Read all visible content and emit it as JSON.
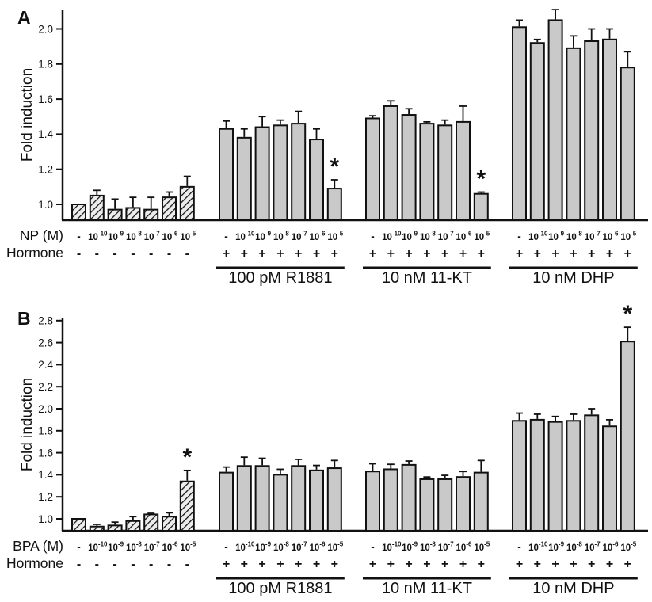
{
  "figure": {
    "title": "Fold induction bar chart figure, panels A and B",
    "colors": {
      "bar_fill": "#c9c9c9",
      "hatch_bg": "#ececec",
      "ink": "#111111",
      "background": "#ffffff"
    }
  },
  "chart_data": [
    {
      "type": "bar",
      "panel_letter": "A",
      "ylabel": "Fold induction",
      "ylim": [
        0.9,
        2.12
      ],
      "yticks": [
        1.0,
        1.2,
        1.4,
        1.6,
        1.8,
        2.0
      ],
      "grid": false,
      "legend": "none",
      "dose_row_label": "NP (M)",
      "hormone_row_label": "Hormone",
      "doses": [
        {
          "text": "-",
          "exp": ""
        },
        {
          "text": "10",
          "exp": "-10"
        },
        {
          "text": "10",
          "exp": "-9"
        },
        {
          "text": "10",
          "exp": "-8"
        },
        {
          "text": "10",
          "exp": "-7"
        },
        {
          "text": "10",
          "exp": "-6"
        },
        {
          "text": "10",
          "exp": "-5"
        }
      ],
      "groups": [
        {
          "label": "",
          "hormone_sign": "-",
          "hatched": true,
          "underline": false,
          "values": [
            1.0,
            1.05,
            0.97,
            0.98,
            0.97,
            1.04,
            1.1
          ],
          "errors": [
            0,
            0.03,
            0.06,
            0.06,
            0.07,
            0.03,
            0.06
          ],
          "significant": []
        },
        {
          "label": "100 pM R1881",
          "hormone_sign": "+",
          "hatched": false,
          "underline": true,
          "values": [
            1.43,
            1.38,
            1.44,
            1.45,
            1.46,
            1.37,
            1.09
          ],
          "errors": [
            0.045,
            0.05,
            0.06,
            0.03,
            0.07,
            0.06,
            0.05
          ],
          "significant": [
            6
          ]
        },
        {
          "label": "10 nM 11-KT",
          "hormone_sign": "+",
          "hatched": false,
          "underline": true,
          "values": [
            1.49,
            1.56,
            1.51,
            1.46,
            1.45,
            1.47,
            1.06
          ],
          "errors": [
            0.015,
            0.03,
            0.035,
            0.01,
            0.03,
            0.09,
            0.01
          ],
          "significant": [
            6
          ]
        },
        {
          "label": "10 nM DHP",
          "hormone_sign": "+",
          "hatched": false,
          "underline": true,
          "values": [
            2.01,
            1.92,
            2.05,
            1.89,
            1.93,
            1.94,
            1.78
          ],
          "errors": [
            0.04,
            0.02,
            0.06,
            0.07,
            0.07,
            0.06,
            0.09
          ],
          "significant": []
        }
      ]
    },
    {
      "type": "bar",
      "panel_letter": "B",
      "ylabel": "Fold induction",
      "ylim": [
        0.89,
        2.85
      ],
      "yticks": [
        1.0,
        1.2,
        1.4,
        1.6,
        1.8,
        2.0,
        2.2,
        2.4,
        2.6,
        2.8
      ],
      "grid": false,
      "legend": "none",
      "dose_row_label": "BPA (M)",
      "hormone_row_label": "Hormone",
      "doses": [
        {
          "text": "-",
          "exp": ""
        },
        {
          "text": "10",
          "exp": "-10"
        },
        {
          "text": "10",
          "exp": "-9"
        },
        {
          "text": "10",
          "exp": "-8"
        },
        {
          "text": "10",
          "exp": "-7"
        },
        {
          "text": "10",
          "exp": "-6"
        },
        {
          "text": "10",
          "exp": "-5"
        }
      ],
      "groups": [
        {
          "label": "",
          "hormone_sign": "-",
          "hatched": true,
          "underline": false,
          "values": [
            1.0,
            0.93,
            0.94,
            0.98,
            1.04,
            1.02,
            1.34
          ],
          "errors": [
            0,
            0.02,
            0.03,
            0.04,
            0.01,
            0.035,
            0.1
          ],
          "significant": [
            6
          ]
        },
        {
          "label": "100 pM R1881",
          "hormone_sign": "+",
          "hatched": false,
          "underline": true,
          "values": [
            1.42,
            1.48,
            1.48,
            1.4,
            1.48,
            1.44,
            1.46
          ],
          "errors": [
            0.05,
            0.08,
            0.07,
            0.05,
            0.06,
            0.045,
            0.07
          ],
          "significant": []
        },
        {
          "label": "10 nM 11-KT",
          "hormone_sign": "+",
          "hatched": false,
          "underline": true,
          "values": [
            1.43,
            1.45,
            1.49,
            1.36,
            1.36,
            1.38,
            1.42
          ],
          "errors": [
            0.07,
            0.045,
            0.035,
            0.02,
            0.035,
            0.05,
            0.11
          ],
          "significant": []
        },
        {
          "label": "10 nM DHP",
          "hormone_sign": "+",
          "hatched": false,
          "underline": true,
          "values": [
            1.89,
            1.9,
            1.88,
            1.89,
            1.94,
            1.84,
            2.61
          ],
          "errors": [
            0.07,
            0.05,
            0.05,
            0.06,
            0.06,
            0.06,
            0.13
          ],
          "significant": [
            6
          ]
        }
      ]
    }
  ]
}
